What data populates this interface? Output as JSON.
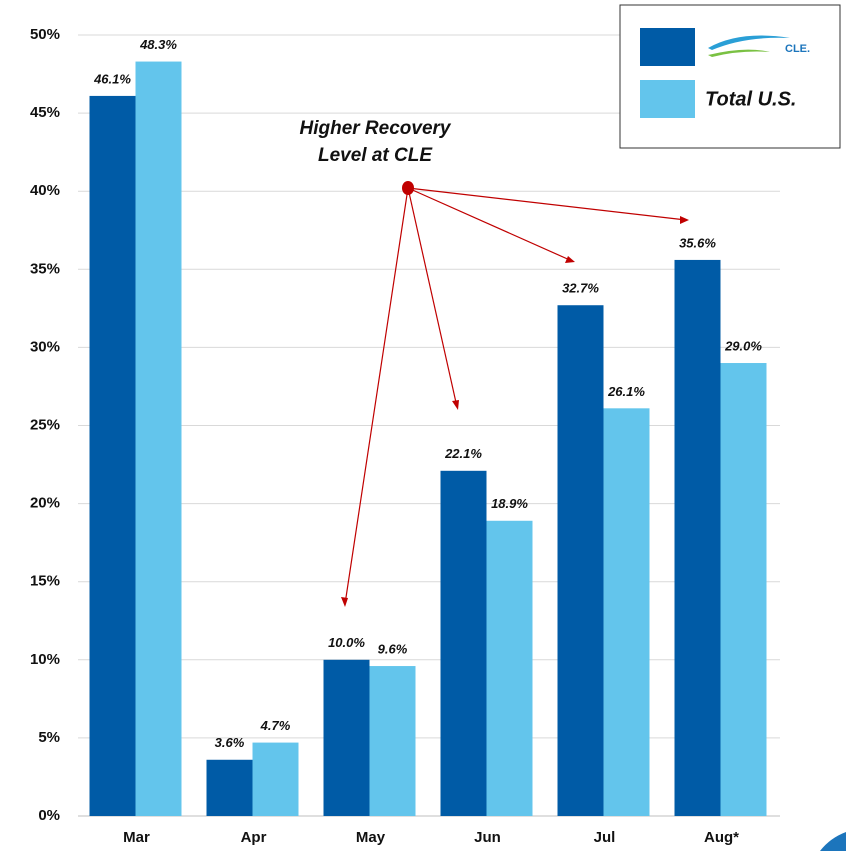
{
  "chart_data": {
    "type": "bar",
    "annotation": [
      "Higher Recovery",
      "Level at CLE"
    ],
    "categories": [
      "Mar",
      "Apr",
      "May",
      "Jun",
      "Jul",
      "Aug*"
    ],
    "series": [
      {
        "name": "CLE.",
        "color": "#005BA6",
        "values": [
          46.1,
          3.6,
          10.0,
          22.1,
          32.7,
          35.6
        ],
        "value_labels": [
          "46.1%",
          "3.6%",
          "10.0%",
          "22.1%",
          "32.7%",
          "35.6%"
        ]
      },
      {
        "name": "Total U.S.",
        "color": "#63C5EC",
        "values": [
          48.3,
          4.7,
          9.6,
          18.9,
          26.1,
          29.0
        ],
        "value_labels": [
          "48.3%",
          "4.7%",
          "9.6%",
          "18.9%",
          "26.1%",
          "29.0%"
        ]
      }
    ],
    "ylim": [
      0,
      50
    ],
    "yticks": [
      {
        "value": 0,
        "label": "0%"
      },
      {
        "value": 5,
        "label": "5%"
      },
      {
        "value": 10,
        "label": "10%"
      },
      {
        "value": 15,
        "label": "15%"
      },
      {
        "value": 20,
        "label": "20%"
      },
      {
        "value": 25,
        "label": "25%"
      },
      {
        "value": 30,
        "label": "30%"
      },
      {
        "value": 35,
        "label": "35%"
      },
      {
        "value": 40,
        "label": "40%"
      },
      {
        "value": 45,
        "label": "45%"
      },
      {
        "value": 50,
        "label": "50%"
      }
    ],
    "grid": true,
    "legend": "top-right"
  }
}
